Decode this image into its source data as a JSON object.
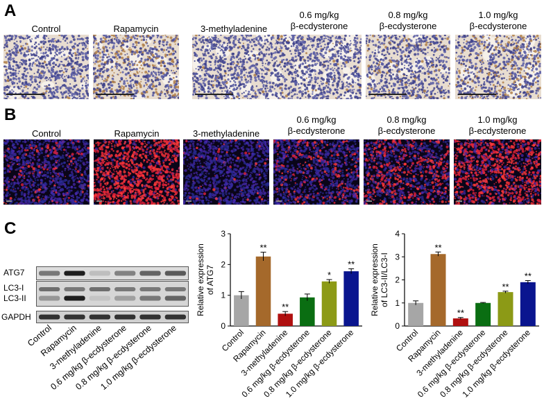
{
  "panels": {
    "a": {
      "letter": "A"
    },
    "b": {
      "letter": "B"
    },
    "c": {
      "letter": "C"
    }
  },
  "groups": [
    {
      "line1": "Control",
      "line2": ""
    },
    {
      "line1": "Rapamycin",
      "line2": ""
    },
    {
      "line1": "3-methyladenine",
      "line2": ""
    },
    {
      "line1": "0.6 mg/kg",
      "line2": "β-ecdysterone"
    },
    {
      "line1": "0.8 mg/kg",
      "line2": "β-ecdysterone"
    },
    {
      "line1": "1.0 mg/kg",
      "line2": "β-ecdysterone"
    }
  ],
  "blot": {
    "bands": [
      "ATG7",
      "LC3-I",
      "LC3-II",
      "GAPDH"
    ],
    "lanes": [
      "Control",
      "Rapamycin",
      "3-methyladenine",
      "0.6 mg/kg β-ecdysterone",
      "0.8 mg/kg β-ecdysterone",
      "1.0 mg/kg β-ecdysterone"
    ]
  },
  "chart_data": [
    {
      "type": "bar",
      "categories": [
        "Control",
        "Rapamycin",
        "3-methyladenine",
        "0.6 mg/kg β-ecdysterone",
        "0.8 mg/kg β-ecdysterone",
        "1.0 mg/kg β-ecdysterone"
      ],
      "values": [
        1.0,
        2.26,
        0.4,
        0.93,
        1.45,
        1.78
      ],
      "errors": [
        0.12,
        0.14,
        0.07,
        0.11,
        0.06,
        0.08
      ],
      "significance": [
        "",
        "**",
        "**",
        "",
        "*",
        "**"
      ],
      "colors": [
        "#a6a6a6",
        "#a5692b",
        "#b01010",
        "#0a6e12",
        "#8c9a16",
        "#0a158f"
      ],
      "ylabel_line1": "Relative expression",
      "ylabel_line2": "of ATG7",
      "ylim": [
        0,
        3
      ],
      "yticks": [
        "0",
        "1",
        "2",
        "3"
      ]
    },
    {
      "type": "bar",
      "categories": [
        "Control",
        "Rapamycin",
        "3-methyladenine",
        "0.6 mg/kg β-ecdysterone",
        "0.8 mg/kg β-ecdysterone",
        "1.0 mg/kg β-ecdysterone"
      ],
      "values": [
        1.0,
        3.12,
        0.33,
        1.0,
        1.47,
        1.9
      ],
      "errors": [
        0.09,
        0.09,
        0.04,
        0.02,
        0.04,
        0.07
      ],
      "significance": [
        "",
        "**",
        "**",
        "",
        "**",
        "**"
      ],
      "colors": [
        "#a6a6a6",
        "#a5692b",
        "#b01010",
        "#0a6e12",
        "#8c9a16",
        "#0a158f"
      ],
      "ylabel_line1": "Relative expression",
      "ylabel_line2": "of LC3-II/LC3-I",
      "ylim": [
        0,
        4
      ],
      "yticks": [
        "0",
        "1",
        "2",
        "3",
        "4"
      ]
    }
  ]
}
